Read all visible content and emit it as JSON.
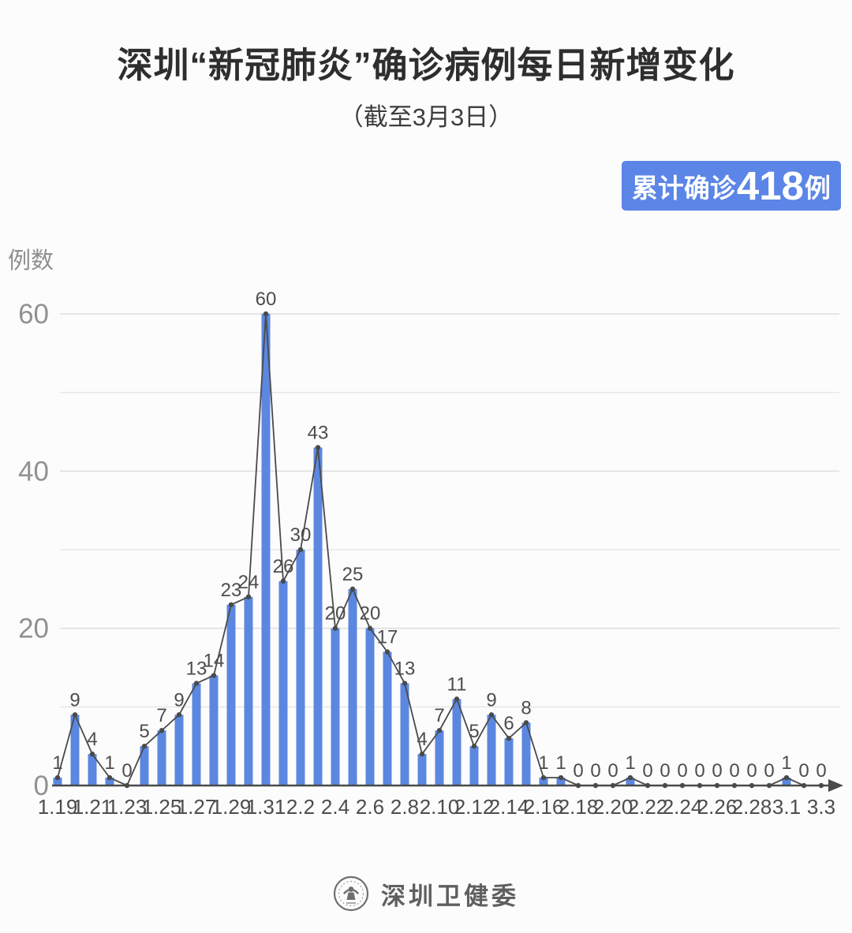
{
  "title": "深圳“新冠肺炎”确诊病例每日新增变化",
  "subtitle": "（截至3月3日）",
  "badge": {
    "prefix": "累计确诊",
    "value": "418",
    "suffix": "例"
  },
  "chart_data": {
    "type": "bar",
    "overlay": "line-with-markers",
    "title": "深圳“新冠肺炎”确诊病例每日新增变化（截至3月3日）",
    "ylabel": "例数",
    "xlabel": "",
    "ylim": [
      0,
      60
    ],
    "yticks": [
      0,
      20,
      40,
      60
    ],
    "grid_interval": 10,
    "grid_on": true,
    "x_label_step": 2,
    "categories": [
      "1.19",
      "1.20",
      "1.21",
      "1.22",
      "1.23",
      "1.24",
      "1.25",
      "1.26",
      "1.27",
      "1.28",
      "1.29",
      "1.30",
      "1.31",
      "2.1",
      "2.2",
      "2.3",
      "2.4",
      "2.5",
      "2.6",
      "2.7",
      "2.8",
      "2.9",
      "2.10",
      "2.11",
      "2.12",
      "2.13",
      "2.14",
      "2.15",
      "2.16",
      "2.17",
      "2.18",
      "2.19",
      "2.20",
      "2.21",
      "2.22",
      "2.23",
      "2.24",
      "2.25",
      "2.26",
      "2.27",
      "2.28",
      "2.29",
      "3.1",
      "3.2",
      "3.3"
    ],
    "values": [
      1,
      9,
      4,
      1,
      0,
      5,
      7,
      9,
      13,
      14,
      23,
      24,
      60,
      26,
      30,
      43,
      20,
      25,
      20,
      17,
      13,
      4,
      7,
      11,
      5,
      9,
      6,
      8,
      1,
      1,
      0,
      0,
      0,
      1,
      0,
      0,
      0,
      0,
      0,
      0,
      0,
      0,
      1,
      0,
      0
    ],
    "total": 418
  },
  "footer": {
    "logo": "shenzhen-health-commission-emblem",
    "text": "深圳卫健委"
  },
  "colors": {
    "bar": "#5b87e0",
    "badge_bg": "#5b85e6",
    "badge_text": "#ffffff",
    "line": "#4a4a4a",
    "marker": "#4a4a4a",
    "grid": "#e7e7e7",
    "grid_labeled": "#dedede",
    "axis_line": "#4a4a4a",
    "y_tick_text": "#919191",
    "x_tick_text": "#4d4d4d",
    "value_label": "#4d4d4d",
    "ylabel_text": "#8f8f8f",
    "title_text": "#2e2e2e",
    "footer_text": "#5f5f5f"
  }
}
